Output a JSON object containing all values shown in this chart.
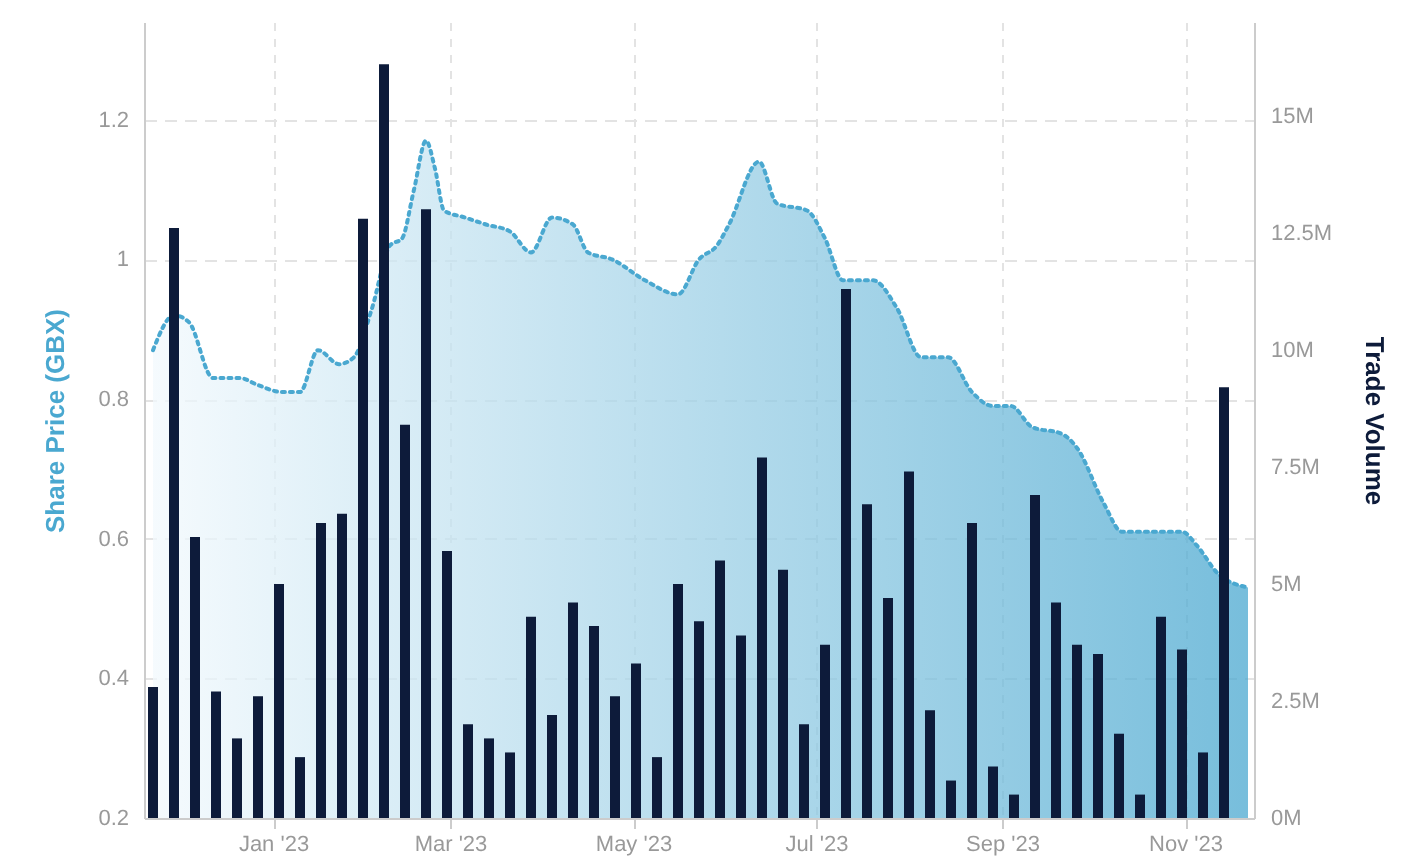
{
  "chart_data": {
    "type": "bar",
    "ylabel": "Share Price (GBX)",
    "y2label": "Trade Volume",
    "grid": true,
    "xlim": [
      "2022-11-19",
      "2023-11-24"
    ],
    "xticks": [
      {
        "value": "2023-01-01",
        "label": "Jan '23"
      },
      {
        "value": "2023-03-01",
        "label": "Mar '23"
      },
      {
        "value": "2023-05-01",
        "label": "May '23"
      },
      {
        "value": "2023-07-01",
        "label": "Jul '23"
      },
      {
        "value": "2023-09-01",
        "label": "Sep '23"
      },
      {
        "value": "2023-11-01",
        "label": "Nov '23"
      }
    ],
    "ylim": [
      0.2,
      1.34
    ],
    "yticks": [
      0.2,
      0.4,
      0.6,
      0.8,
      1,
      1.2
    ],
    "y2lim": [
      0,
      17000000
    ],
    "y2ticks": [
      {
        "value": 0,
        "label": "0M"
      },
      {
        "value": 2500000,
        "label": "2.5M"
      },
      {
        "value": 5000000,
        "label": "5M"
      },
      {
        "value": 7500000,
        "label": "7.5M"
      },
      {
        "value": 10000000,
        "label": "10M"
      },
      {
        "value": 12500000,
        "label": "12.5M"
      },
      {
        "value": 15000000,
        "label": "15M"
      }
    ],
    "series": [
      {
        "type": "area",
        "color": "#4aa8d0",
        "line_style": "dotted",
        "axis": "y",
        "x": [
          "2022-11-22",
          "2022-11-29",
          "2022-12-04",
          "2022-12-12",
          "2022-12-21",
          "2022-12-27",
          "2023-01-04",
          "2023-01-10",
          "2023-01-16",
          "2023-01-23",
          "2023-01-28",
          "2023-02-03",
          "2023-02-09",
          "2023-02-13",
          "2023-02-17",
          "2023-02-21",
          "2023-02-24",
          "2023-02-27",
          "2023-03-06",
          "2023-03-13",
          "2023-03-21",
          "2023-03-28",
          "2023-04-04",
          "2023-04-11",
          "2023-04-16",
          "2023-04-24",
          "2023-05-05",
          "2023-05-16",
          "2023-05-23",
          "2023-05-29",
          "2023-06-02",
          "2023-06-12",
          "2023-06-18",
          "2023-06-28",
          "2023-07-04",
          "2023-07-10",
          "2023-07-20",
          "2023-07-28",
          "2023-08-05",
          "2023-08-14",
          "2023-08-22",
          "2023-08-29",
          "2023-09-04",
          "2023-09-11",
          "2023-09-21",
          "2023-09-26",
          "2023-10-05",
          "2023-10-11",
          "2023-10-23",
          "2023-10-31",
          "2023-11-05",
          "2023-11-12",
          "2023-11-22"
        ],
        "values": [
          0.87,
          0.92,
          0.91,
          0.83,
          0.83,
          0.82,
          0.81,
          0.81,
          0.87,
          0.85,
          0.86,
          0.93,
          1.02,
          1.03,
          1.1,
          1.17,
          1.13,
          1.07,
          1.06,
          1.05,
          1.04,
          1.01,
          1.06,
          1.05,
          1.01,
          1.0,
          0.97,
          0.95,
          1.0,
          1.02,
          1.05,
          1.14,
          1.08,
          1.07,
          1.03,
          0.97,
          0.97,
          0.93,
          0.86,
          0.86,
          0.81,
          0.79,
          0.79,
          0.76,
          0.75,
          0.73,
          0.65,
          0.61,
          0.61,
          0.61,
          0.59,
          0.55,
          0.53
        ]
      },
      {
        "color": "#0d1b3a",
        "axis": "y2",
        "x": [
          "2022-11-22",
          "2022-11-29",
          "2022-12-06",
          "2022-12-13",
          "2022-12-20",
          "2022-12-27",
          "2023-01-03",
          "2023-01-10",
          "2023-01-17",
          "2023-01-24",
          "2023-01-31",
          "2023-02-07",
          "2023-02-14",
          "2023-02-21",
          "2023-02-28",
          "2023-03-07",
          "2023-03-14",
          "2023-03-21",
          "2023-03-28",
          "2023-04-04",
          "2023-04-11",
          "2023-04-18",
          "2023-04-25",
          "2023-05-02",
          "2023-05-09",
          "2023-05-16",
          "2023-05-23",
          "2023-05-30",
          "2023-06-06",
          "2023-06-13",
          "2023-06-20",
          "2023-06-27",
          "2023-07-04",
          "2023-07-11",
          "2023-07-18",
          "2023-07-25",
          "2023-08-01",
          "2023-08-08",
          "2023-08-15",
          "2023-08-22",
          "2023-08-29",
          "2023-09-05",
          "2023-09-12",
          "2023-09-19",
          "2023-09-26",
          "2023-10-03",
          "2023-10-10",
          "2023-10-17",
          "2023-10-24",
          "2023-10-31",
          "2023-11-07",
          "2023-11-14"
        ],
        "values": [
          2800000,
          12600000,
          6000000,
          2700000,
          1700000,
          2600000,
          5000000,
          1300000,
          6300000,
          6500000,
          12800000,
          16100000,
          8400000,
          13000000,
          5700000,
          2000000,
          1700000,
          1400000,
          4300000,
          2200000,
          4600000,
          4100000,
          2600000,
          3300000,
          1300000,
          5000000,
          4200000,
          5500000,
          3900000,
          7700000,
          5300000,
          2000000,
          3700000,
          11300000,
          6700000,
          4700000,
          7400000,
          2300000,
          800000,
          6300000,
          1100000,
          500000,
          6900000,
          4600000,
          3700000,
          3500000,
          1800000,
          500000,
          4300000,
          3600000,
          1400000,
          9200000
        ]
      }
    ]
  }
}
